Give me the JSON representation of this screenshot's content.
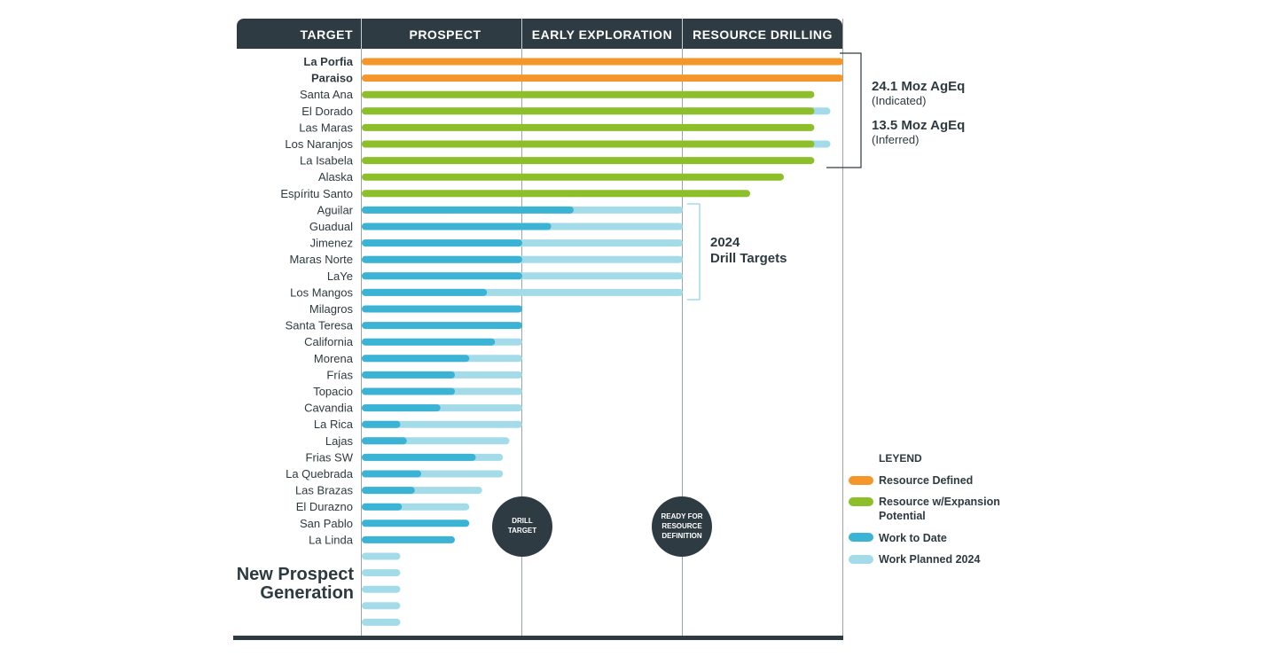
{
  "chart_data": {
    "type": "bar",
    "orientation": "horizontal",
    "stages": [
      "PROSPECT",
      "EARLY EXPLORATION",
      "RESOURCE DRILLING"
    ],
    "header_first": "TARGET",
    "value_unit_note": "bar length in stage units (0-3); 1 = end of Prospect, 2 = end of Early Exploration, 3 = end of Resource Drilling",
    "rows": [
      {
        "name": "La Porfia",
        "bold": true,
        "status": "Resource Defined",
        "done": 3.0,
        "planned": 3.0
      },
      {
        "name": "Paraiso",
        "bold": true,
        "status": "Resource Defined",
        "done": 3.0,
        "planned": 3.0
      },
      {
        "name": "Santa Ana",
        "bold": false,
        "status": "Resource w/Expansion Potential",
        "done": 2.82,
        "planned": 2.82
      },
      {
        "name": "El Dorado",
        "bold": false,
        "status": "Resource w/Expansion Potential",
        "done": 2.82,
        "planned": 2.92
      },
      {
        "name": "Las Maras",
        "bold": false,
        "status": "Resource w/Expansion Potential",
        "done": 2.82,
        "planned": 2.82
      },
      {
        "name": "Los Naranjos",
        "bold": false,
        "status": "Resource w/Expansion Potential",
        "done": 2.82,
        "planned": 2.92
      },
      {
        "name": "La Isabela",
        "bold": false,
        "status": "Resource w/Expansion Potential",
        "done": 2.82,
        "planned": 2.82
      },
      {
        "name": "Alaska",
        "bold": false,
        "status": "Resource w/Expansion Potential",
        "done": 2.63,
        "planned": 2.63
      },
      {
        "name": "Espíritu Santo",
        "bold": false,
        "status": "Resource w/Expansion Potential",
        "done": 2.42,
        "planned": 2.42
      },
      {
        "name": "Aguilar",
        "bold": false,
        "status": "Work to Date",
        "done": 1.32,
        "planned": 2.0
      },
      {
        "name": "Guadual",
        "bold": false,
        "status": "Work to Date",
        "done": 1.18,
        "planned": 2.0
      },
      {
        "name": "Jimenez",
        "bold": false,
        "status": "Work to Date",
        "done": 1.0,
        "planned": 2.0
      },
      {
        "name": "Maras Norte",
        "bold": false,
        "status": "Work to Date",
        "done": 1.0,
        "planned": 2.0
      },
      {
        "name": "LaYe",
        "bold": false,
        "status": "Work to Date",
        "done": 1.0,
        "planned": 2.0
      },
      {
        "name": "Los Mangos",
        "bold": false,
        "status": "Work to Date",
        "done": 0.78,
        "planned": 2.0
      },
      {
        "name": "Milagros",
        "bold": false,
        "status": "Work to Date",
        "done": 1.0,
        "planned": 1.0
      },
      {
        "name": "Santa Teresa",
        "bold": false,
        "status": "Work to Date",
        "done": 1.0,
        "planned": 1.0
      },
      {
        "name": "California",
        "bold": false,
        "status": "Work to Date",
        "done": 0.83,
        "planned": 1.0
      },
      {
        "name": "Morena",
        "bold": false,
        "status": "Work to Date",
        "done": 0.67,
        "planned": 1.0
      },
      {
        "name": "Frías",
        "bold": false,
        "status": "Work to Date",
        "done": 0.58,
        "planned": 1.0
      },
      {
        "name": "Topacio",
        "bold": false,
        "status": "Work to Date",
        "done": 0.58,
        "planned": 1.0
      },
      {
        "name": "Cavandia",
        "bold": false,
        "status": "Work to Date",
        "done": 0.49,
        "planned": 1.0
      },
      {
        "name": "La Rica",
        "bold": false,
        "status": "Work to Date",
        "done": 0.24,
        "planned": 1.0
      },
      {
        "name": "Lajas",
        "bold": false,
        "status": "Work to Date",
        "done": 0.28,
        "planned": 0.92
      },
      {
        "name": "Frias SW",
        "bold": false,
        "status": "Work to Date",
        "done": 0.71,
        "planned": 0.88
      },
      {
        "name": "La Quebrada",
        "bold": false,
        "status": "Work to Date",
        "done": 0.37,
        "planned": 0.88
      },
      {
        "name": "Las Brazas",
        "bold": false,
        "status": "Work to Date",
        "done": 0.33,
        "planned": 0.75
      },
      {
        "name": "El Durazno",
        "bold": false,
        "status": "Work to Date",
        "done": 0.25,
        "planned": 0.67
      },
      {
        "name": "San Pablo",
        "bold": false,
        "status": "Work to Date",
        "done": 0.67,
        "planned": 0.67
      },
      {
        "name": "La Linda",
        "bold": false,
        "status": "Work to Date",
        "done": 0.58,
        "planned": 0.58
      },
      {
        "name": "",
        "bold": false,
        "status": "Work Planned 2024",
        "done": 0.0,
        "planned": 0.24
      },
      {
        "name": "",
        "bold": false,
        "status": "Work Planned 2024",
        "done": 0.0,
        "planned": 0.24
      },
      {
        "name": "",
        "bold": false,
        "status": "Work Planned 2024",
        "done": 0.0,
        "planned": 0.24
      },
      {
        "name": "",
        "bold": false,
        "status": "Work Planned 2024",
        "done": 0.0,
        "planned": 0.24
      },
      {
        "name": "",
        "bold": false,
        "status": "Work Planned 2024",
        "done": 0.0,
        "planned": 0.24
      }
    ],
    "new_prospect_label": [
      "New Prospect",
      "Generation"
    ],
    "resource_note": {
      "indicated_value": "24.1 Moz AgEq",
      "indicated_label": "(Indicated)",
      "inferred_value": "13.5 Moz AgEq",
      "inferred_label": "(Inferred)"
    },
    "drill_note": [
      "2024",
      "Drill Targets"
    ],
    "milestones": [
      {
        "lines": [
          "DRILL",
          "TARGET"
        ]
      },
      {
        "lines": [
          "READY FOR",
          "RESOURCE",
          "DEFINITION"
        ]
      }
    ],
    "legend": {
      "title": "LEYEND",
      "items": [
        {
          "label": "Resource Defined",
          "color": "#f5962b"
        },
        {
          "label": "Resource w/Expansion Potential",
          "color": "#8dbf2b"
        },
        {
          "label": "Work to Date",
          "color": "#3bb3d4"
        },
        {
          "label": "Work Planned 2024",
          "color": "#a3dbe9"
        }
      ]
    },
    "colors": {
      "header_bg": "#2f3b42",
      "resource_defined": "#f5962b",
      "expansion": "#8dbf2b",
      "work_to_date": "#3bb3d4",
      "work_planned": "#a3dbe9",
      "circle": "#2f3b42"
    }
  }
}
